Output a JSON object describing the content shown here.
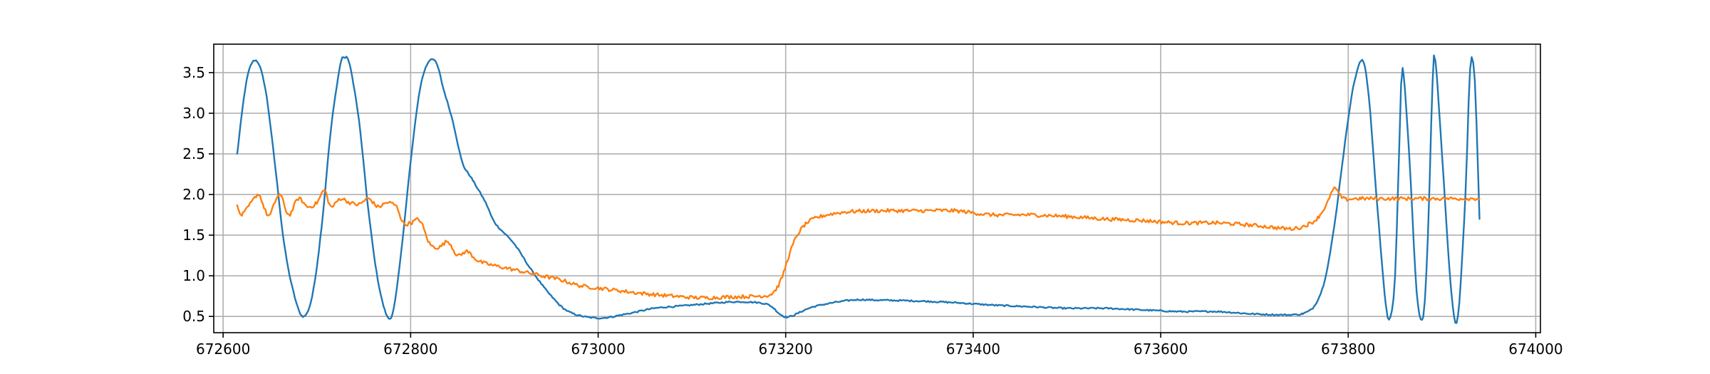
{
  "chart_data": {
    "type": "line",
    "title": "",
    "xlabel": "",
    "ylabel": "",
    "xlim": [
      672590,
      674005
    ],
    "ylim": [
      0.3,
      3.85
    ],
    "xticks": [
      672600,
      672800,
      673000,
      673200,
      673400,
      673600,
      673800,
      674000
    ],
    "xtick_labels": [
      "672600",
      "672800",
      "673000",
      "673200",
      "673400",
      "673600",
      "673800",
      "674000"
    ],
    "yticks": [
      0.5,
      1.0,
      1.5,
      2.0,
      2.5,
      3.0,
      3.5
    ],
    "ytick_labels": [
      "0.5",
      "1.0",
      "1.5",
      "2.0",
      "2.5",
      "3.0",
      "3.5"
    ],
    "grid": true,
    "legend": "none",
    "series": [
      {
        "color": "#1f77b4",
        "x": [
          672615,
          672625,
          672635,
          672645,
          672655,
          672665,
          672675,
          672685,
          672695,
          672705,
          672715,
          672725,
          672730,
          672735,
          672745,
          672755,
          672765,
          672775,
          672782,
          672790,
          672800,
          672810,
          672820,
          672828,
          672835,
          672845,
          672855,
          672865,
          672880,
          672890,
          672910,
          672930,
          672950,
          672970,
          673000,
          673030,
          673060,
          673090,
          673120,
          673150,
          673180,
          673195,
          673205,
          673230,
          673270,
          673300,
          673340,
          673380,
          673420,
          673460,
          673500,
          673540,
          673580,
          673620,
          673660,
          673700,
          673740,
          673755,
          673765,
          673775,
          673785,
          673795,
          673805,
          673815,
          673822,
          673830,
          673840,
          673845,
          673850,
          673855,
          673858,
          673865,
          673873,
          673880,
          673885,
          673890,
          673893,
          673900,
          673910,
          673917,
          673925,
          673930,
          673935,
          673940
        ],
        "y": [
          2.5,
          3.4,
          3.65,
          3.3,
          2.4,
          1.4,
          0.8,
          0.5,
          0.75,
          1.6,
          2.8,
          3.6,
          3.68,
          3.6,
          2.9,
          1.8,
          0.95,
          0.5,
          0.6,
          1.3,
          2.4,
          3.3,
          3.65,
          3.6,
          3.3,
          2.9,
          2.4,
          2.2,
          1.9,
          1.65,
          1.4,
          1.05,
          0.75,
          0.55,
          0.48,
          0.53,
          0.6,
          0.63,
          0.66,
          0.68,
          0.65,
          0.52,
          0.5,
          0.62,
          0.7,
          0.7,
          0.69,
          0.67,
          0.64,
          0.62,
          0.6,
          0.6,
          0.58,
          0.56,
          0.56,
          0.53,
          0.52,
          0.55,
          0.65,
          0.95,
          1.6,
          2.5,
          3.3,
          3.65,
          3.2,
          2.0,
          0.65,
          0.5,
          1.0,
          2.8,
          3.55,
          2.5,
          0.8,
          0.5,
          1.5,
          3.4,
          3.65,
          2.5,
          0.8,
          0.5,
          2.0,
          3.55,
          3.4,
          1.7
        ]
      },
      {
        "color": "#ff7f0e",
        "x": [
          672615,
          672620,
          672630,
          672638,
          672645,
          672650,
          672660,
          672670,
          672680,
          672690,
          672700,
          672708,
          672715,
          672725,
          672735,
          672745,
          672755,
          672765,
          672775,
          672785,
          672792,
          672800,
          672810,
          672820,
          672830,
          672840,
          672850,
          672860,
          672870,
          672880,
          672900,
          672920,
          672940,
          672960,
          672980,
          673000,
          673020,
          673050,
          673080,
          673110,
          673140,
          673170,
          673185,
          673195,
          673205,
          673215,
          673230,
          673260,
          673300,
          673340,
          673380,
          673420,
          673460,
          673500,
          673540,
          673580,
          673620,
          673660,
          673700,
          673740,
          673760,
          673770,
          673780,
          673785,
          673795,
          673810,
          673840,
          673870,
          673900,
          673920,
          673940
        ],
        "y": [
          1.85,
          1.75,
          1.9,
          2.0,
          1.8,
          1.75,
          2.0,
          1.75,
          1.95,
          1.85,
          1.9,
          2.05,
          1.85,
          1.95,
          1.9,
          1.88,
          1.95,
          1.85,
          1.9,
          1.85,
          1.65,
          1.65,
          1.68,
          1.4,
          1.35,
          1.42,
          1.25,
          1.3,
          1.2,
          1.15,
          1.1,
          1.05,
          1.0,
          0.95,
          0.88,
          0.85,
          0.82,
          0.78,
          0.75,
          0.73,
          0.74,
          0.75,
          0.78,
          0.95,
          1.3,
          1.55,
          1.7,
          1.78,
          1.8,
          1.8,
          1.8,
          1.75,
          1.75,
          1.73,
          1.7,
          1.68,
          1.65,
          1.65,
          1.62,
          1.58,
          1.65,
          1.75,
          1.95,
          2.08,
          1.95,
          1.95,
          1.95,
          1.95,
          1.95,
          1.95,
          1.95
        ]
      }
    ]
  }
}
